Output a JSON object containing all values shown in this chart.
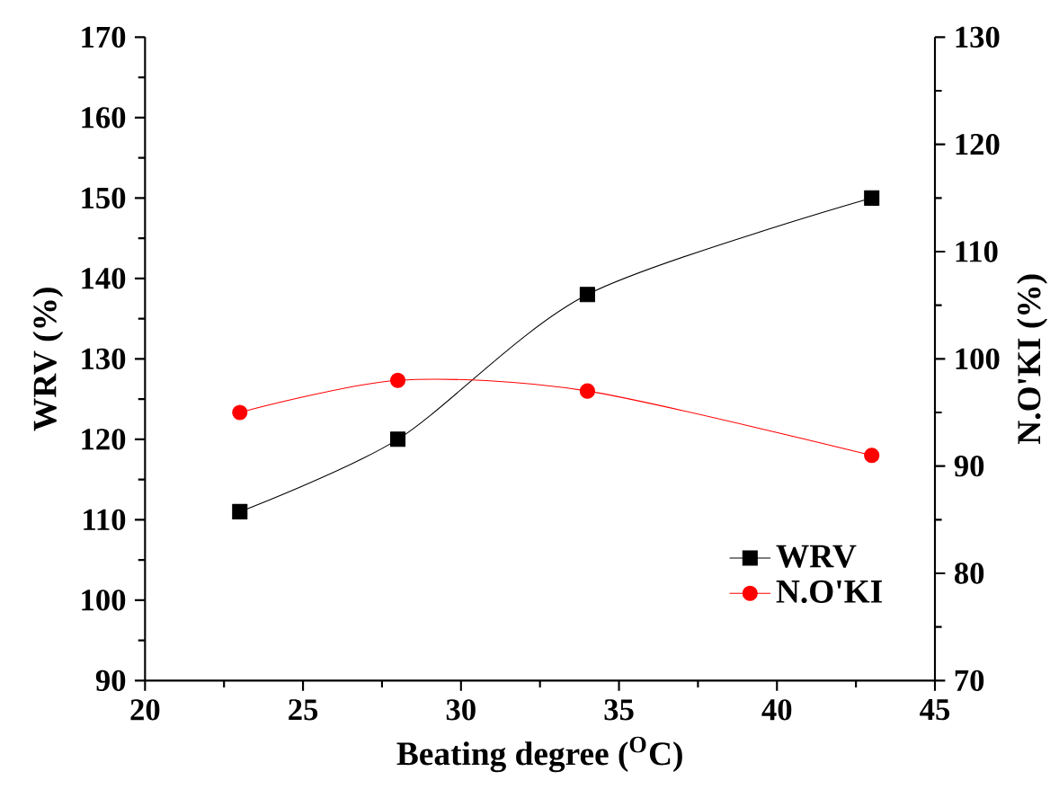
{
  "chart_data": {
    "type": "line",
    "xlabel": "Beating degree ($^{O}$C)",
    "ylabel": "WRV (%)",
    "y2label": "N.O'KI (%)",
    "x": [
      23,
      28,
      34,
      43
    ],
    "series": [
      {
        "name": "WRV",
        "color": "#000000",
        "marker": "square",
        "values": [
          111,
          120,
          138,
          150
        ]
      },
      {
        "name": "N.O'KI",
        "color": "#ff0000",
        "marker": "circle",
        "axis": "y2",
        "values": [
          95,
          98,
          97,
          91
        ]
      }
    ],
    "xlim": [
      20,
      45
    ],
    "xticks": [
      20,
      25,
      30,
      35,
      40,
      45
    ],
    "ylim": [
      90,
      170
    ],
    "yticks": [
      90,
      100,
      110,
      120,
      130,
      140,
      150,
      160,
      170
    ],
    "y2lim": [
      70,
      130
    ],
    "y2ticks": [
      70,
      80,
      90,
      100,
      110,
      120,
      130
    ],
    "legend": "bottom right",
    "line_style": "solid"
  }
}
